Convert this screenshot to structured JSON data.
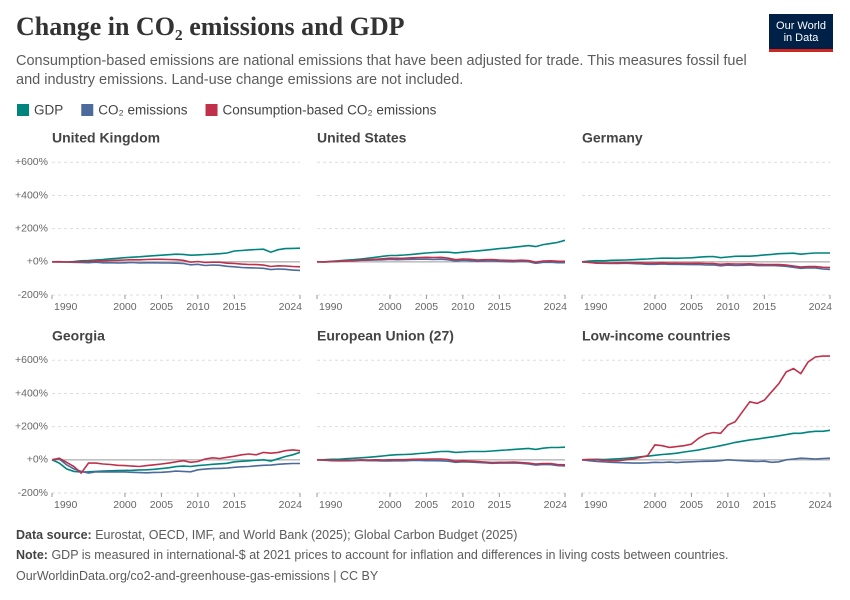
{
  "header": {
    "title": "Change in CO₂ emissions and GDP",
    "subtitle": "Consumption-based emissions are national emissions that have been adjusted for trade. This measures fossil fuel and industry emissions. Land-use change emissions are not included.",
    "logo": [
      "Our World",
      "in Data"
    ]
  },
  "footer": {
    "source_label": "Data source:",
    "source": "Eurostat, OECD, IMF, and World Bank (2025); Global Carbon Budget (2025)",
    "note_label": "Note:",
    "note": "GDP is measured in international-$ at 2021 prices to account for inflation and differences in living costs between countries.",
    "url": "OurWorldinData.org/co2-and-greenhouse-gas-emissions | CC BY"
  },
  "chart_data": [
    {
      "type": "line",
      "title": "United Kingdom",
      "x": [
        1990,
        1991,
        1992,
        1993,
        1994,
        1995,
        1996,
        1997,
        1998,
        1999,
        2000,
        2001,
        2002,
        2003,
        2004,
        2005,
        2006,
        2007,
        2008,
        2009,
        2010,
        2011,
        2012,
        2013,
        2014,
        2015,
        2016,
        2017,
        2018,
        2019,
        2020,
        2021,
        2022,
        2023,
        2024
      ],
      "series": [
        {
          "name": "GDP",
          "color": "#00847e",
          "values": [
            0,
            -1,
            -1,
            2,
            6,
            8,
            11,
            14,
            18,
            21,
            25,
            28,
            30,
            34,
            37,
            40,
            43,
            46,
            45,
            40,
            42,
            44,
            46,
            49,
            53,
            65,
            68,
            72,
            74,
            76,
            58,
            73,
            80,
            81,
            82
          ]
        },
        {
          "name": "CO₂ emissions",
          "color": "#4c6a9c",
          "values": [
            0,
            1,
            -1,
            -3,
            -4,
            -5,
            -2,
            -6,
            -5,
            -7,
            -6,
            -4,
            -7,
            -6,
            -6,
            -7,
            -7,
            -8,
            -10,
            -18,
            -15,
            -22,
            -19,
            -21,
            -27,
            -30,
            -34,
            -36,
            -37,
            -39,
            -47,
            -43,
            -45,
            -50,
            -52
          ]
        },
        {
          "name": "Consumption-based CO₂ emissions",
          "color": "#c0304a",
          "values": [
            0,
            0,
            -1,
            -1,
            1,
            2,
            5,
            6,
            8,
            9,
            11,
            13,
            12,
            14,
            15,
            15,
            14,
            13,
            9,
            -2,
            2,
            -4,
            -2,
            -2,
            -8,
            -10,
            -14,
            -16,
            -17,
            -20,
            -28,
            -24,
            -25,
            -28,
            -30
          ]
        }
      ],
      "xlim": [
        1990,
        2024
      ],
      "xticks": [
        1990,
        2000,
        2005,
        2010,
        2015,
        2024
      ],
      "ylim": [
        -200,
        650
      ],
      "yticks": [
        {
          "value": 600,
          "label": "+600%"
        },
        {
          "value": 400,
          "label": "+400%"
        },
        {
          "value": 200,
          "label": "+200%"
        },
        {
          "value": 0,
          "label": "+0%"
        },
        {
          "value": -200,
          "label": "-200%"
        }
      ]
    },
    {
      "type": "line",
      "title": "United States",
      "x": [
        1990,
        1991,
        1992,
        1993,
        1994,
        1995,
        1996,
        1997,
        1998,
        1999,
        2000,
        2001,
        2002,
        2003,
        2004,
        2005,
        2006,
        2007,
        2008,
        2009,
        2010,
        2011,
        2012,
        2013,
        2014,
        2015,
        2016,
        2017,
        2018,
        2019,
        2020,
        2021,
        2022,
        2023,
        2024
      ],
      "series": [
        {
          "values": [
            0,
            0,
            3,
            6,
            10,
            13,
            17,
            22,
            27,
            33,
            38,
            39,
            41,
            45,
            49,
            53,
            56,
            58,
            58,
            54,
            58,
            62,
            66,
            70,
            75,
            80,
            83,
            88,
            93,
            98,
            92,
            104,
            110,
            117,
            130
          ]
        },
        {
          "values": [
            0,
            -1,
            1,
            3,
            5,
            6,
            9,
            10,
            11,
            12,
            15,
            13,
            14,
            15,
            16,
            16,
            14,
            16,
            12,
            5,
            9,
            7,
            3,
            5,
            6,
            3,
            1,
            0,
            3,
            1,
            -9,
            -3,
            -2,
            -5,
            -5
          ]
        },
        {
          "values": [
            0,
            -1,
            1,
            3,
            6,
            8,
            11,
            13,
            15,
            18,
            22,
            21,
            22,
            24,
            26,
            27,
            26,
            27,
            22,
            13,
            17,
            15,
            11,
            13,
            14,
            11,
            9,
            8,
            10,
            8,
            -2,
            5,
            6,
            4,
            3
          ]
        }
      ],
      "xlim": [
        1990,
        2024
      ],
      "xticks": [
        1990,
        2000,
        2005,
        2010,
        2015,
        2024
      ],
      "ylim": [
        -200,
        650
      ],
      "yticks": [
        {
          "value": 600,
          "label": "+600%"
        },
        {
          "value": 400,
          "label": "+400%"
        },
        {
          "value": 200,
          "label": "+200%"
        },
        {
          "value": 0,
          "label": "+0%"
        },
        {
          "value": -200,
          "label": "-200%"
        }
      ]
    },
    {
      "type": "line",
      "title": "Germany",
      "x": [
        1990,
        1991,
        1992,
        1993,
        1994,
        1995,
        1996,
        1997,
        1998,
        1999,
        2000,
        2001,
        2002,
        2003,
        2004,
        2005,
        2006,
        2007,
        2008,
        2009,
        2010,
        2011,
        2012,
        2013,
        2014,
        2015,
        2016,
        2017,
        2018,
        2019,
        2020,
        2021,
        2022,
        2023,
        2024
      ],
      "series": [
        {
          "values": [
            0,
            5,
            7,
            6,
            9,
            10,
            11,
            13,
            15,
            17,
            20,
            22,
            22,
            21,
            23,
            24,
            28,
            31,
            32,
            25,
            29,
            33,
            34,
            34,
            37,
            42,
            45,
            49,
            51,
            52,
            46,
            50,
            53,
            53,
            53
          ]
        },
        {
          "values": [
            0,
            -4,
            -8,
            -9,
            -10,
            -10,
            -8,
            -11,
            -12,
            -15,
            -15,
            -13,
            -15,
            -15,
            -16,
            -17,
            -16,
            -19,
            -18,
            -24,
            -20,
            -22,
            -21,
            -19,
            -23,
            -23,
            -22,
            -24,
            -27,
            -33,
            -39,
            -36,
            -37,
            -43,
            -46
          ]
        },
        {
          "values": [
            0,
            -3,
            -6,
            -7,
            -7,
            -6,
            -4,
            -6,
            -6,
            -8,
            -7,
            -6,
            -8,
            -8,
            -9,
            -9,
            -8,
            -10,
            -10,
            -15,
            -12,
            -13,
            -13,
            -12,
            -15,
            -16,
            -16,
            -17,
            -20,
            -25,
            -31,
            -28,
            -29,
            -33,
            -35
          ]
        }
      ],
      "xlim": [
        1990,
        2024
      ],
      "xticks": [
        1990,
        2000,
        2005,
        2010,
        2015,
        2024
      ],
      "ylim": [
        -200,
        650
      ],
      "yticks": [
        {
          "value": 600,
          "label": "+600%"
        },
        {
          "value": 400,
          "label": "+400%"
        },
        {
          "value": 200,
          "label": "+200%"
        },
        {
          "value": 0,
          "label": "+0%"
        },
        {
          "value": -200,
          "label": "-200%"
        }
      ]
    },
    {
      "type": "line",
      "title": "Georgia",
      "x": [
        1990,
        1991,
        1992,
        1993,
        1994,
        1995,
        1996,
        1997,
        1998,
        1999,
        2000,
        2001,
        2002,
        2003,
        2004,
        2005,
        2006,
        2007,
        2008,
        2009,
        2010,
        2011,
        2012,
        2013,
        2014,
        2015,
        2016,
        2017,
        2018,
        2019,
        2020,
        2021,
        2022,
        2023,
        2024
      ],
      "series": [
        {
          "values": [
            0,
            -20,
            -55,
            -70,
            -73,
            -72,
            -70,
            -68,
            -66,
            -65,
            -64,
            -63,
            -61,
            -60,
            -57,
            -53,
            -48,
            -41,
            -38,
            -40,
            -35,
            -31,
            -27,
            -24,
            -21,
            -12,
            -9,
            -6,
            -3,
            0,
            -7,
            6,
            20,
            30,
            45
          ]
        },
        {
          "values": [
            0,
            5,
            -30,
            -55,
            -70,
            -80,
            -72,
            -73,
            -72,
            -73,
            -73,
            -75,
            -77,
            -78,
            -76,
            -75,
            -72,
            -68,
            -70,
            -72,
            -60,
            -56,
            -53,
            -52,
            -50,
            -45,
            -42,
            -40,
            -36,
            -33,
            -32,
            -27,
            -24,
            -22,
            -22
          ]
        },
        {
          "values": [
            0,
            10,
            -15,
            -40,
            -80,
            -20,
            -20,
            -25,
            -28,
            -33,
            -35,
            -38,
            -40,
            -35,
            -30,
            -25,
            -20,
            -12,
            -5,
            -15,
            -10,
            5,
            12,
            8,
            15,
            22,
            30,
            35,
            30,
            45,
            40,
            45,
            55,
            60,
            55
          ]
        }
      ],
      "xlim": [
        1990,
        2024
      ],
      "xticks": [
        1990,
        2000,
        2005,
        2010,
        2015,
        2024
      ],
      "ylim": [
        -200,
        650
      ],
      "yticks": [
        {
          "value": 600,
          "label": "+600%"
        },
        {
          "value": 400,
          "label": "+400%"
        },
        {
          "value": 200,
          "label": "+200%"
        },
        {
          "value": 0,
          "label": "+0%"
        },
        {
          "value": -200,
          "label": "-200%"
        }
      ]
    },
    {
      "type": "line",
      "title": "European Union (27)",
      "x": [
        1990,
        1991,
        1992,
        1993,
        1994,
        1995,
        1996,
        1997,
        1998,
        1999,
        2000,
        2001,
        2002,
        2003,
        2004,
        2005,
        2006,
        2007,
        2008,
        2009,
        2010,
        2011,
        2012,
        2013,
        2014,
        2015,
        2016,
        2017,
        2018,
        2019,
        2020,
        2021,
        2022,
        2023,
        2024
      ],
      "series": [
        {
          "values": [
            0,
            1,
            3,
            3,
            7,
            9,
            12,
            15,
            19,
            23,
            28,
            31,
            32,
            34,
            38,
            41,
            46,
            50,
            51,
            45,
            47,
            50,
            50,
            50,
            53,
            57,
            59,
            63,
            66,
            69,
            63,
            70,
            74,
            74,
            76
          ]
        },
        {
          "values": [
            0,
            -2,
            -5,
            -6,
            -6,
            -5,
            -3,
            -5,
            -5,
            -7,
            -7,
            -5,
            -6,
            -4,
            -4,
            -5,
            -5,
            -6,
            -8,
            -15,
            -12,
            -14,
            -16,
            -18,
            -21,
            -20,
            -20,
            -19,
            -21,
            -25,
            -32,
            -28,
            -29,
            -35,
            -37
          ]
        },
        {
          "values": [
            0,
            -1,
            -3,
            -4,
            -3,
            -2,
            0,
            -1,
            0,
            -1,
            0,
            1,
            1,
            3,
            4,
            4,
            5,
            5,
            2,
            -8,
            -5,
            -8,
            -11,
            -13,
            -16,
            -15,
            -15,
            -14,
            -16,
            -19,
            -26,
            -22,
            -23,
            -28,
            -30
          ]
        }
      ],
      "xlim": [
        1990,
        2024
      ],
      "xticks": [
        1990,
        2000,
        2005,
        2010,
        2015,
        2024
      ],
      "ylim": [
        -200,
        650
      ],
      "yticks": [
        {
          "value": 600,
          "label": "+600%"
        },
        {
          "value": 400,
          "label": "+400%"
        },
        {
          "value": 200,
          "label": "+200%"
        },
        {
          "value": 0,
          "label": "+0%"
        },
        {
          "value": -200,
          "label": "-200%"
        }
      ]
    },
    {
      "type": "line",
      "title": "Low-income countries",
      "x": [
        1990,
        1991,
        1992,
        1993,
        1994,
        1995,
        1996,
        1997,
        1998,
        1999,
        2000,
        2001,
        2002,
        2003,
        2004,
        2005,
        2006,
        2007,
        2008,
        2009,
        2010,
        2011,
        2012,
        2013,
        2014,
        2015,
        2016,
        2017,
        2018,
        2019,
        2020,
        2021,
        2022,
        2023,
        2024
      ],
      "series": [
        {
          "values": [
            0,
            2,
            3,
            2,
            4,
            6,
            9,
            13,
            18,
            22,
            27,
            32,
            36,
            40,
            47,
            53,
            60,
            68,
            77,
            85,
            95,
            105,
            112,
            120,
            125,
            132,
            138,
            145,
            152,
            160,
            160,
            167,
            172,
            172,
            178
          ]
        },
        {
          "values": [
            0,
            -5,
            -10,
            -12,
            -15,
            -17,
            -18,
            -20,
            -20,
            -18,
            -15,
            -16,
            -14,
            -17,
            -14,
            -12,
            -10,
            -9,
            -8,
            -5,
            0,
            -3,
            -5,
            -8,
            -10,
            -8,
            -15,
            -12,
            0,
            5,
            10,
            8,
            5,
            8,
            10
          ]
        },
        {
          "values": [
            0,
            2,
            0,
            -3,
            -5,
            -5,
            0,
            5,
            15,
            25,
            90,
            85,
            75,
            80,
            85,
            95,
            130,
            155,
            165,
            160,
            210,
            230,
            290,
            350,
            340,
            360,
            410,
            460,
            530,
            550,
            520,
            590,
            620,
            625,
            625
          ]
        }
      ],
      "xlim": [
        1990,
        2024
      ],
      "xticks": [
        1990,
        2000,
        2005,
        2010,
        2015,
        2024
      ],
      "ylim": [
        -200,
        650
      ],
      "yticks": [
        {
          "value": 600,
          "label": "+600%"
        },
        {
          "value": 400,
          "label": "+400%"
        },
        {
          "value": 200,
          "label": "+200%"
        },
        {
          "value": 0,
          "label": "+0%"
        },
        {
          "value": -200,
          "label": "-200%"
        }
      ]
    }
  ]
}
